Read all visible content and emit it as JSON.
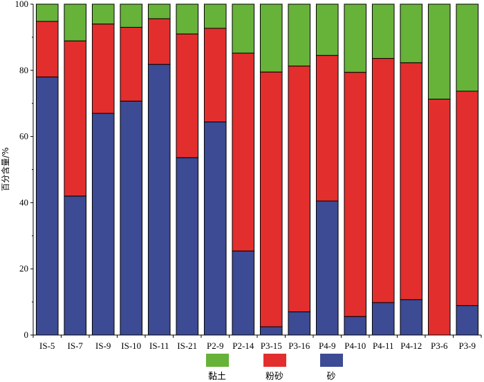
{
  "chart_data": {
    "type": "bar",
    "stacked": true,
    "ylabel": "百分含量/%",
    "xlabel": "",
    "ylim": [
      0,
      100
    ],
    "yticks": [
      0,
      20,
      40,
      60,
      80,
      100
    ],
    "grid": false,
    "legend_position": "bottom",
    "categories": [
      "IS-5",
      "IS-7",
      "IS-9",
      "IS-10",
      "IS-11",
      "IS-21",
      "P2-9",
      "P2-14",
      "P3-15",
      "P3-16",
      "P4-9",
      "P4-10",
      "P4-11",
      "P4-12",
      "P3-6",
      "P3-9"
    ],
    "series": [
      {
        "name": "砂",
        "color": "#3d4a94",
        "values": [
          78,
          42,
          67,
          70.7,
          81.8,
          53.6,
          64.4,
          25.4,
          2.5,
          7,
          40.5,
          5.6,
          9.8,
          10.7,
          0,
          8.9
        ]
      },
      {
        "name": "粉砂",
        "color": "#e32e2e",
        "values": [
          16.8,
          46.9,
          27,
          22.3,
          13.8,
          37.4,
          28.3,
          59.8,
          77,
          74.3,
          44,
          73.8,
          73.8,
          71.6,
          71.3,
          64.8
        ]
      },
      {
        "name": "黏土",
        "color": "#67b239",
        "values": [
          5.2,
          11.1,
          6,
          7,
          4.4,
          9,
          7.3,
          14.8,
          20.5,
          18.7,
          15.5,
          20.6,
          16.4,
          17.7,
          28.7,
          26.3
        ]
      }
    ],
    "legend_order": [
      "黏土",
      "粉砂",
      "砂"
    ]
  }
}
